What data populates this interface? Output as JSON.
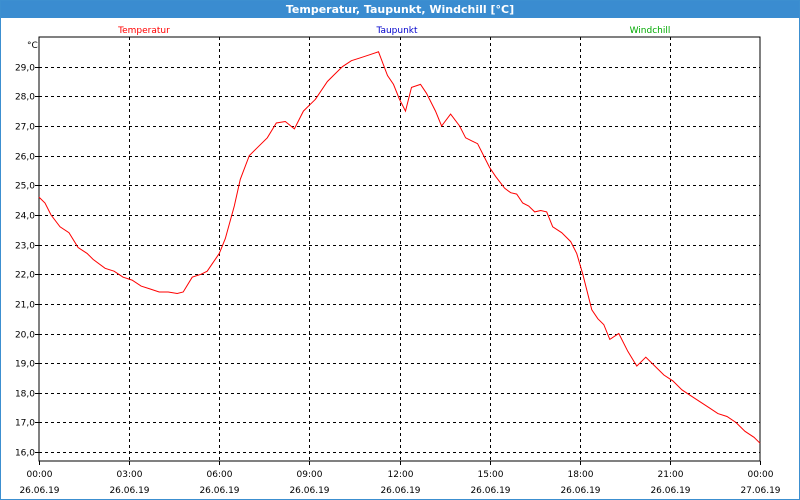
{
  "window": {
    "title": "Temperatur, Taupunkt, Windchill [°C]"
  },
  "colors": {
    "titlebar": "#3a8cd0",
    "temperatur": "#ff0000",
    "taupunkt": "#0000cc",
    "windchill": "#00aa00",
    "grid": "#000000"
  },
  "chart_data": {
    "type": "line",
    "title": "Temperatur, Taupunkt, Windchill [°C]",
    "ylabel": "°C",
    "xlabel": "",
    "ylim": [
      15.7,
      30.0
    ],
    "yticks": [
      "16,0",
      "17,0",
      "18,0",
      "19,0",
      "20,0",
      "21,0",
      "22,0",
      "23,0",
      "24,0",
      "25,0",
      "26,0",
      "27,0",
      "28,0",
      "29,0"
    ],
    "xticks": [
      {
        "time": "00:00",
        "date": "26.06.19"
      },
      {
        "time": "03:00",
        "date": "26.06.19"
      },
      {
        "time": "06:00",
        "date": "26.06.19"
      },
      {
        "time": "09:00",
        "date": "26.06.19"
      },
      {
        "time": "12:00",
        "date": "26.06.19"
      },
      {
        "time": "15:00",
        "date": "26.06.19"
      },
      {
        "time": "18:00",
        "date": "26.06.19"
      },
      {
        "time": "21:00",
        "date": "26.06.19"
      },
      {
        "time": "00:00",
        "date": "27.06.19"
      }
    ],
    "xlim_hours": [
      0,
      24
    ],
    "grid": true,
    "legend": [
      "Temperatur",
      "Taupunkt",
      "Windchill"
    ],
    "series": [
      {
        "name": "Temperatur",
        "color": "#ff0000",
        "x": [
          0.0,
          0.2,
          0.4,
          0.7,
          1.0,
          1.3,
          1.6,
          1.8,
          2.2,
          2.5,
          2.8,
          3.1,
          3.4,
          3.7,
          4.0,
          4.3,
          4.6,
          4.8,
          5.1,
          5.4,
          5.6,
          6.0,
          6.2,
          6.5,
          6.7,
          7.0,
          7.3,
          7.6,
          7.9,
          8.2,
          8.5,
          8.8,
          9.0,
          9.2,
          9.6,
          9.8,
          10.1,
          10.4,
          10.7,
          11.0,
          11.3,
          11.6,
          11.8,
          12.0,
          12.2,
          12.4,
          12.7,
          12.9,
          13.2,
          13.4,
          13.7,
          14.0,
          14.2,
          14.4,
          14.6,
          14.8,
          15.0,
          15.2,
          15.5,
          15.7,
          15.9,
          16.1,
          16.3,
          16.5,
          16.7,
          16.9,
          17.1,
          17.4,
          17.7,
          17.9,
          18.1,
          18.4,
          18.6,
          18.8,
          19.0,
          19.3,
          19.6,
          19.9,
          20.2,
          20.5,
          20.8,
          21.1,
          21.4,
          21.7,
          22.0,
          22.3,
          22.6,
          22.9,
          23.2,
          23.5,
          23.8,
          24.0
        ],
        "y": [
          24.6,
          24.4,
          24.0,
          23.6,
          23.4,
          22.9,
          22.7,
          22.5,
          22.2,
          22.1,
          21.9,
          21.8,
          21.6,
          21.5,
          21.4,
          21.4,
          21.35,
          21.4,
          21.9,
          22.0,
          22.1,
          22.7,
          23.2,
          24.3,
          25.2,
          26.0,
          26.3,
          26.6,
          27.1,
          27.15,
          26.9,
          27.5,
          27.7,
          27.9,
          28.5,
          28.7,
          29.0,
          29.2,
          29.3,
          29.4,
          29.5,
          28.7,
          28.4,
          27.9,
          27.5,
          28.3,
          28.4,
          28.1,
          27.5,
          27.0,
          27.4,
          27.0,
          26.6,
          26.5,
          26.4,
          26.0,
          25.6,
          25.3,
          24.9,
          24.75,
          24.7,
          24.4,
          24.3,
          24.1,
          24.15,
          24.1,
          23.6,
          23.4,
          23.1,
          22.7,
          22.0,
          20.8,
          20.5,
          20.3,
          19.8,
          20.0,
          19.4,
          18.9,
          19.2,
          18.9,
          18.6,
          18.4,
          18.1,
          17.9,
          17.7,
          17.5,
          17.3,
          17.2,
          17.0,
          16.7,
          16.5,
          16.3
        ]
      },
      {
        "name": "Taupunkt",
        "color": "#0000cc",
        "x": [],
        "y": []
      },
      {
        "name": "Windchill",
        "color": "#00aa00",
        "x": [],
        "y": []
      }
    ]
  }
}
